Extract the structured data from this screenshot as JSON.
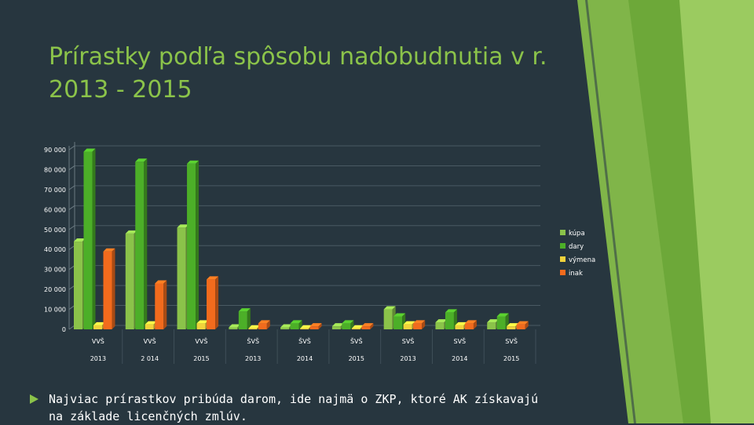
{
  "slide": {
    "title": "Prírastky podľa spôsobu nadobudnutia v r. 2013 - 2015",
    "bullet_text": "Najviac prírastkov pribúda darom, ide najmä o ZKP, ktoré AK získavajú na základe licenčných zmlúv.",
    "bullet_icon": "triangle-bullet-icon"
  },
  "colors": {
    "background": "#27363f",
    "title": "#8bc34a",
    "kupa": "#8bc34a",
    "dary": "#4caf28",
    "vymena": "#f2d33b",
    "inak": "#f26b1d"
  },
  "chart_data": {
    "type": "bar",
    "categories": [
      [
        "VVŠ",
        "2013"
      ],
      [
        "VVŠ",
        "2 014"
      ],
      [
        "VVŠ",
        "2015"
      ],
      [
        "ŠVŠ",
        "2013"
      ],
      [
        "ŠVŠ",
        "2014"
      ],
      [
        "ŠVŠ",
        "2015"
      ],
      [
        "SVŠ",
        "2013"
      ],
      [
        "SVŠ",
        "2014"
      ],
      [
        "SVŠ",
        "2015"
      ]
    ],
    "series": [
      {
        "name": "kúpa",
        "values": [
          44000,
          48000,
          51000,
          1000,
          1000,
          1500,
          10000,
          3500,
          3500
        ]
      },
      {
        "name": "dary",
        "values": [
          89000,
          84000,
          83000,
          9000,
          3000,
          3000,
          6500,
          8500,
          6500
        ]
      },
      {
        "name": "výmena",
        "values": [
          2000,
          2500,
          3000,
          500,
          500,
          500,
          2500,
          2000,
          1500
        ]
      },
      {
        "name": "inak",
        "values": [
          39000,
          23000,
          25000,
          3000,
          1500,
          1500,
          3000,
          3000,
          2500
        ]
      }
    ],
    "yticks": [
      "0",
      "10 000",
      "20 000",
      "30 000",
      "40 000",
      "50 000",
      "60 000",
      "70 000",
      "80 000",
      "90 000"
    ],
    "ylim": [
      0,
      90000
    ],
    "legend_position": "right",
    "grid": true
  }
}
